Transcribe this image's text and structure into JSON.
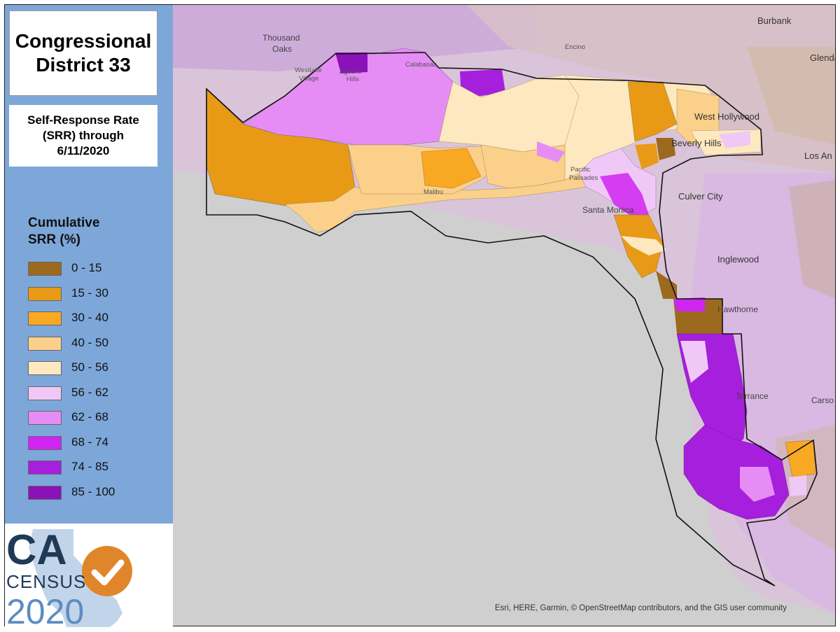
{
  "title": {
    "line1": "Congressional",
    "line2": "District 33"
  },
  "subtitle": {
    "line1": "Self-Response Rate",
    "line2": "(SRR) through",
    "line3": "6/11/2020"
  },
  "legend": {
    "title_line1": "Cumulative",
    "title_line2": "SRR (%)",
    "items": [
      {
        "label": "0 - 15",
        "color": "#9c6a1e"
      },
      {
        "label": "15 - 30",
        "color": "#e89a16"
      },
      {
        "label": "30 - 40",
        "color": "#f8a823"
      },
      {
        "label": "40 - 50",
        "color": "#fbd08a"
      },
      {
        "label": "50 - 56",
        "color": "#fde8bf"
      },
      {
        "label": "56 - 62",
        "color": "#f0c8f8"
      },
      {
        "label": "62 - 68",
        "color": "#e58df5"
      },
      {
        "label": "68 - 74",
        "color": "#cf25f0"
      },
      {
        "label": "74 - 85",
        "color": "#a51fdc"
      },
      {
        "label": "85 - 100",
        "color": "#8a12b8"
      }
    ]
  },
  "logo": {
    "ca": "CA",
    "census": "CENSUS",
    "year": "2020",
    "brand_color": "#1f3a57",
    "check_color": "#e0852a"
  },
  "map": {
    "places": [
      {
        "name": "Burbank",
        "key": "burbank"
      },
      {
        "name": "Glendal",
        "key": "glendale"
      },
      {
        "name": "Thousand",
        "key": "thousand"
      },
      {
        "name": "Oaks",
        "key": "oaks"
      },
      {
        "name": "Encino",
        "key": "encino"
      },
      {
        "name": "Westlake",
        "key": "westlake"
      },
      {
        "name": "Village",
        "key": "village"
      },
      {
        "name": "Agoura",
        "key": "agoura"
      },
      {
        "name": "Hills",
        "key": "hills"
      },
      {
        "name": "Calabasas",
        "key": "calabasas"
      },
      {
        "name": "West Hollywood",
        "key": "westhollywood"
      },
      {
        "name": "Beverly Hills",
        "key": "beverlyhills"
      },
      {
        "name": "Los An",
        "key": "losangeles"
      },
      {
        "name": "Pacific",
        "key": "pacific"
      },
      {
        "name": "Palisades",
        "key": "palisades"
      },
      {
        "name": "Malibu",
        "key": "malibu"
      },
      {
        "name": "Culver City",
        "key": "culvercity"
      },
      {
        "name": "Santa Monica",
        "key": "santamonica"
      },
      {
        "name": "Inglewood",
        "key": "inglewood"
      },
      {
        "name": "Hawthorne",
        "key": "hawthorne"
      },
      {
        "name": "Torrance",
        "key": "torrance"
      },
      {
        "name": "Carso",
        "key": "carson"
      }
    ],
    "attribution": "Esri, HERE, Garmin, © OpenStreetMap contributors, and the GIS user community"
  }
}
